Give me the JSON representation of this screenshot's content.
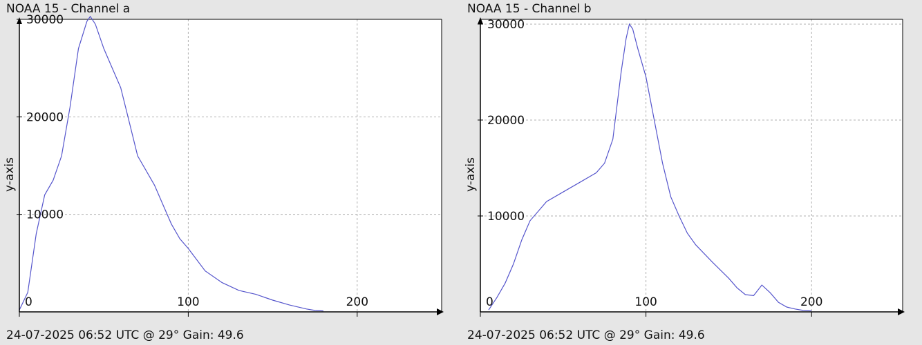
{
  "chart_data": [
    {
      "type": "line",
      "title": "NOAA 15 - Channel a",
      "footer": "24-07-2025 06:52 UTC @ 29° Gain: 49.6",
      "xlabel": "",
      "ylabel": "y-axis",
      "xlim": [
        0,
        250
      ],
      "ylim": [
        0,
        30000
      ],
      "x_ticks": [
        0,
        100,
        200
      ],
      "y_ticks": [
        10000,
        20000,
        30000
      ],
      "grid": true,
      "line_color": "#5555cc",
      "series": [
        {
          "x": [
            0,
            5,
            10,
            15,
            20,
            25,
            30,
            35,
            40,
            42,
            45,
            50,
            55,
            60,
            65,
            70,
            75,
            80,
            85,
            90,
            95,
            100,
            110,
            120,
            130,
            140,
            150,
            160,
            170,
            175,
            180
          ],
          "values": [
            200,
            2000,
            8000,
            12000,
            13500,
            16000,
            21000,
            27000,
            29800,
            30300,
            29500,
            27000,
            25000,
            23000,
            19500,
            16000,
            14500,
            13000,
            11000,
            9000,
            7500,
            6500,
            4200,
            3000,
            2200,
            1800,
            1200,
            700,
            300,
            150,
            100
          ]
        }
      ]
    },
    {
      "type": "line",
      "title": "NOAA 15 - Channel b",
      "footer": "24-07-2025 06:52 UTC @ 29° Gain: 49.6",
      "xlabel": "",
      "ylabel": "y-axis",
      "xlim": [
        0,
        255
      ],
      "ylim": [
        0,
        30500
      ],
      "x_ticks": [
        0,
        100,
        200
      ],
      "y_ticks": [
        10000,
        20000,
        30000
      ],
      "grid": true,
      "line_color": "#5555cc",
      "series": [
        {
          "x": [
            5,
            10,
            15,
            20,
            25,
            30,
            35,
            40,
            50,
            60,
            70,
            75,
            80,
            85,
            88,
            90,
            92,
            95,
            100,
            105,
            110,
            115,
            120,
            125,
            130,
            140,
            150,
            155,
            160,
            165,
            170,
            175,
            180,
            185,
            190,
            195,
            200
          ],
          "values": [
            200,
            1500,
            3000,
            5000,
            7500,
            9500,
            10500,
            11500,
            12500,
            13500,
            14500,
            15500,
            18000,
            25000,
            28500,
            30000,
            29500,
            27500,
            24500,
            20000,
            15500,
            12000,
            10000,
            8200,
            7000,
            5200,
            3500,
            2500,
            1800,
            1700,
            2800,
            2000,
            1000,
            500,
            300,
            150,
            100
          ]
        }
      ]
    }
  ]
}
